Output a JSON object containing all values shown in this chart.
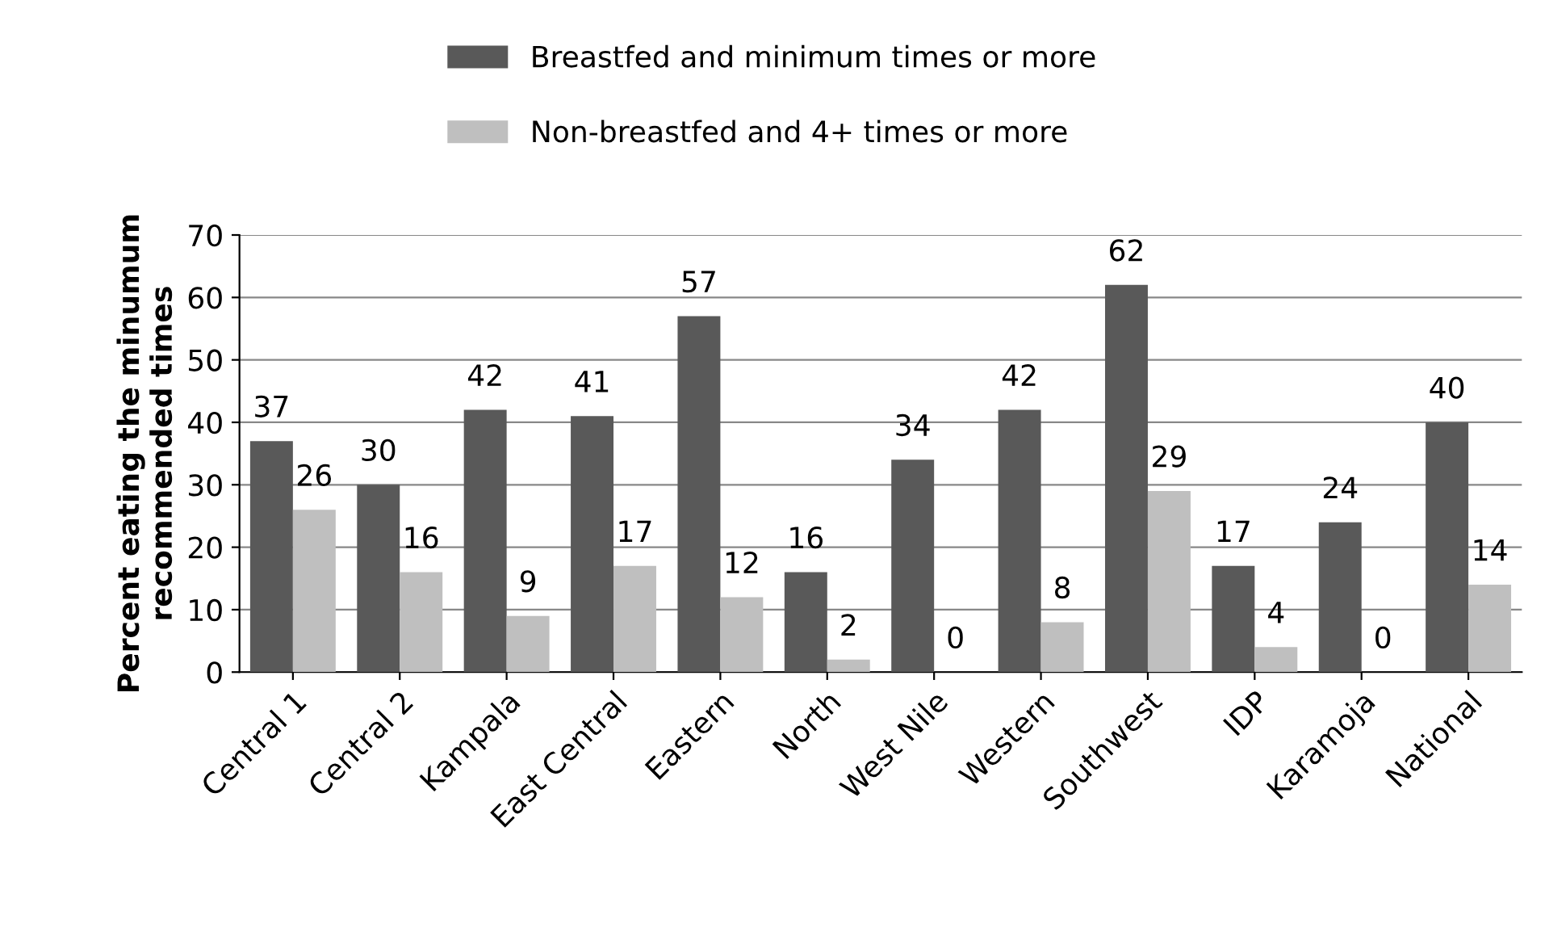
{
  "chart_data": {
    "type": "bar",
    "ylabel": "Percent eating the minumum\nrecommended times",
    "categories": [
      "Central 1",
      "Central 2",
      "Kampala",
      "East Central",
      "Eastern",
      "North",
      "West Nile",
      "Western",
      "Southwest",
      "IDP",
      "Karamoja",
      "National"
    ],
    "series": [
      {
        "name": "Breastfed and minimum times or more",
        "color": "#595959",
        "values": [
          37,
          30,
          42,
          41,
          57,
          16,
          34,
          42,
          62,
          17,
          24,
          40
        ]
      },
      {
        "name": "Non-breastfed and 4+ times or more",
        "color": "#bfbfbf",
        "values": [
          26,
          16,
          9,
          17,
          12,
          2,
          0,
          8,
          29,
          4,
          0,
          14
        ]
      }
    ],
    "ylim": [
      0,
      70
    ],
    "yticks": [
      0,
      10,
      20,
      30,
      40,
      50,
      60,
      70
    ],
    "grid": "y",
    "legend": "top",
    "data_labels": true
  }
}
